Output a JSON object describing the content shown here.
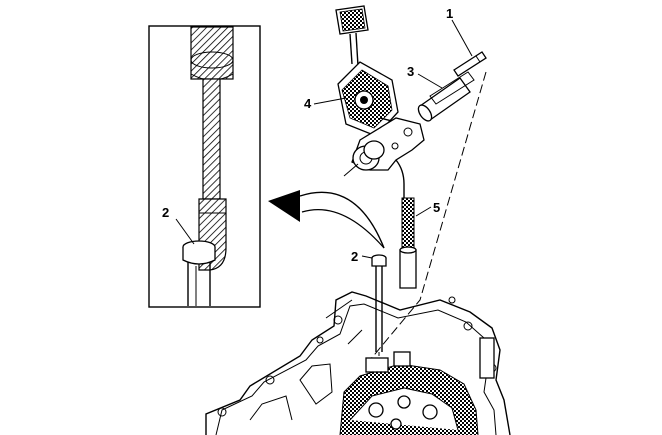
{
  "callouts": {
    "inset_2": "2",
    "part_1": "1",
    "part_2": "2",
    "part_3": "3",
    "part_4": "4",
    "part_5": "5"
  }
}
